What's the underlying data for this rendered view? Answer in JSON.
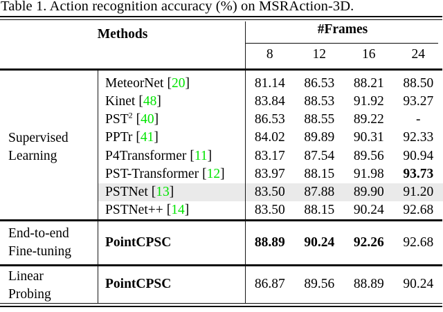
{
  "meta": {
    "bracket_open": "[",
    "bracket_close": "]"
  },
  "title": "Table 1. Action recognition accuracy (%) on MSRAction-3D.",
  "header": {
    "methods_label": "Methods",
    "frames_label": "#Frames",
    "frame_counts": [
      "8",
      "12",
      "16",
      "24"
    ]
  },
  "colors": {
    "citation_green": "#00e400",
    "highlight_gray": "#eaeaea"
  },
  "sections": [
    {
      "label_lines": [
        "Supervised",
        "Learning"
      ],
      "rows": [
        {
          "name": "MeteorNet",
          "ref": "20",
          "values": [
            "81.14",
            "86.53",
            "88.21",
            "88.50"
          ]
        },
        {
          "name": "Kinet",
          "ref": "48",
          "values": [
            "83.84",
            "88.53",
            "91.92",
            "93.27"
          ]
        },
        {
          "name": "PST",
          "sup": "2",
          "ref": "40",
          "values": [
            "86.53",
            "88.55",
            "89.22",
            "-"
          ]
        },
        {
          "name": "PPTr",
          "ref": "41",
          "values": [
            "84.02",
            "89.89",
            "90.31",
            "92.33"
          ]
        },
        {
          "name": "P4Transformer",
          "ref": "11",
          "values": [
            "83.17",
            "87.54",
            "89.56",
            "90.94"
          ]
        },
        {
          "name": "PST-Transformer",
          "ref": "12",
          "values": [
            "83.97",
            "88.15",
            "91.98",
            "93.73"
          ]
        },
        {
          "name": "PSTNet",
          "ref": "13",
          "values": [
            "83.50",
            "87.88",
            "89.90",
            "91.20"
          ],
          "highlighted": true
        },
        {
          "name": "PSTNet++",
          "ref": "14",
          "values": [
            "83.50",
            "88.15",
            "90.24",
            "92.68"
          ]
        }
      ]
    },
    {
      "label_lines": [
        "End-to-end",
        "Fine-tuning"
      ],
      "rows": [
        {
          "name": "PointCPSC",
          "values": [
            "88.89",
            "90.24",
            "92.26",
            "92.68"
          ]
        }
      ]
    },
    {
      "label_lines": [
        "Linear",
        "Probing"
      ],
      "rows": [
        {
          "name": "PointCPSC",
          "values": [
            "86.87",
            "89.56",
            "88.89",
            "90.24"
          ]
        }
      ]
    }
  ]
}
